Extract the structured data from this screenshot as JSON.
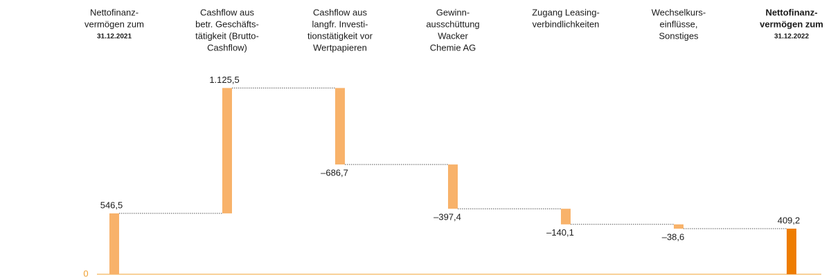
{
  "chart_data": {
    "type": "waterfall",
    "categories": [
      [
        "Nettofinanz-",
        "vermögen zum",
        "31.12.2021"
      ],
      [
        "Cashflow aus",
        "betr. Geschäfts-",
        "tätigkeit (Brutto-",
        "Cashflow)"
      ],
      [
        "Cashflow aus",
        "langfr. Investi-",
        "tionstätigkeit vor",
        "Wertpapieren"
      ],
      [
        "Gewinn-",
        "ausschüttung",
        "Wacker",
        "Chemie AG"
      ],
      [
        "Zugang Leasing-",
        "verbindlichkeiten"
      ],
      [
        "Wechselkurs-",
        "einflüsse,",
        "Sonstiges"
      ],
      [
        "Nettofinanz-",
        "vermögen zum",
        "31.12.2022"
      ]
    ],
    "values": [
      546.5,
      1125.5,
      -686.7,
      -397.4,
      -140.1,
      -38.6,
      409.2
    ],
    "value_labels": [
      "546,5",
      "1.125,5",
      "–686,7",
      "–397,4",
      "–140,1",
      "–38,6",
      "409,2"
    ],
    "measure": [
      "absolute",
      "relative",
      "relative",
      "relative",
      "relative",
      "relative",
      "total"
    ],
    "color": "#f8b26a",
    "total_color": "#ee7d00",
    "axis_color": "#f0a030",
    "ylim": [
      0,
      2400
    ],
    "yticks": [
      0
    ]
  }
}
